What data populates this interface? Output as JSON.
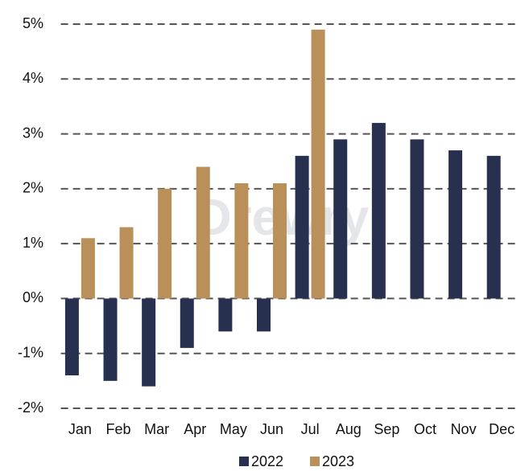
{
  "chart_data": {
    "type": "bar",
    "watermark": "Drewry",
    "categories": [
      "Jan",
      "Feb",
      "Mar",
      "Apr",
      "May",
      "Jun",
      "Jul",
      "Aug",
      "Sep",
      "Oct",
      "Nov",
      "Dec"
    ],
    "series": [
      {
        "name": "2022",
        "color": "#28304f",
        "values": [
          -1.4,
          -1.5,
          -1.6,
          -0.9,
          -0.6,
          -0.6,
          2.6,
          2.9,
          3.2,
          2.9,
          2.7,
          2.6
        ]
      },
      {
        "name": "2023",
        "color": "#b98f5a",
        "values": [
          1.1,
          1.3,
          2.0,
          2.4,
          2.1,
          2.1,
          4.9,
          null,
          null,
          null,
          null,
          null
        ]
      }
    ],
    "ylim": [
      -2,
      5
    ],
    "yticks": [
      {
        "value": -2,
        "label": "-2%"
      },
      {
        "value": -1,
        "label": "-1%"
      },
      {
        "value": 0,
        "label": "0%"
      },
      {
        "value": 1,
        "label": "1%"
      },
      {
        "value": 2,
        "label": "2%"
      },
      {
        "value": 3,
        "label": "3%"
      },
      {
        "value": 4,
        "label": "4%"
      },
      {
        "value": 5,
        "label": "5%"
      }
    ],
    "grid": true,
    "legend": "bottom"
  }
}
